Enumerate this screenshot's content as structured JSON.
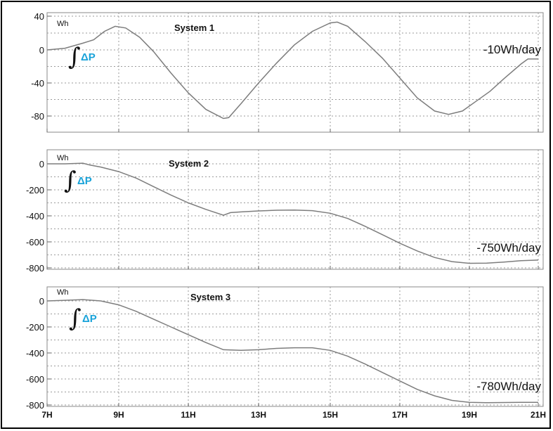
{
  "chart_data": [
    {
      "type": "line",
      "title": "System 1",
      "unit": "Wh",
      "integral_label": "ΔP",
      "annotation": "-10Wh/day",
      "ylim": [
        -90,
        42
      ],
      "yticks": [
        40,
        0,
        -40,
        -80
      ],
      "ytick_labels": [
        "40",
        "0",
        "-40",
        "-80"
      ],
      "xlim": [
        7,
        21
      ],
      "xticks": [
        7,
        9,
        11,
        13,
        15,
        17,
        19,
        21
      ],
      "grid": true,
      "series": [
        {
          "x": [
            7,
            7.5,
            8,
            8.3,
            8.6,
            8.9,
            9.2,
            9.6,
            10,
            10.5,
            11,
            11.5,
            12,
            12.15,
            12.5,
            13,
            13.5,
            14,
            14.5,
            15,
            15.2,
            15.5,
            16,
            16.5,
            17,
            17.5,
            18,
            18.4,
            18.8,
            19.2,
            19.6,
            20,
            20.5,
            20.7,
            21
          ],
          "y": [
            0,
            2,
            8,
            12,
            22,
            28,
            26,
            15,
            -2,
            -28,
            -52,
            -72,
            -83,
            -82,
            -65,
            -40,
            -16,
            6,
            22,
            32,
            33,
            28,
            10,
            -10,
            -34,
            -58,
            -74,
            -78,
            -74,
            -62,
            -50,
            -35,
            -17,
            -11,
            -11
          ]
        }
      ]
    },
    {
      "type": "line",
      "title": "System 2",
      "unit": "Wh",
      "integral_label": "ΔP",
      "annotation": "-750Wh/day",
      "ylim": [
        -800,
        60
      ],
      "yticks": [
        0,
        -200,
        -400,
        -600,
        -800
      ],
      "ytick_labels": [
        "0",
        "-200",
        "-400",
        "-600",
        "-800"
      ],
      "xlim": [
        7,
        21
      ],
      "xticks": [
        7,
        9,
        11,
        13,
        15,
        17,
        19,
        21
      ],
      "grid": true,
      "series": [
        {
          "x": [
            7,
            7.5,
            8,
            8.2,
            8.5,
            9,
            9.5,
            10,
            10.5,
            11,
            11.5,
            12,
            12.2,
            12.5,
            13,
            13.5,
            14,
            14.5,
            15,
            15.5,
            16,
            16.5,
            17,
            17.5,
            18,
            18.5,
            19,
            19.5,
            20,
            20.5,
            21
          ],
          "y": [
            0,
            0,
            5,
            -10,
            -25,
            -60,
            -110,
            -175,
            -240,
            -300,
            -350,
            -395,
            -375,
            -370,
            -362,
            -357,
            -355,
            -360,
            -380,
            -420,
            -480,
            -545,
            -610,
            -670,
            -720,
            -752,
            -765,
            -763,
            -755,
            -745,
            -740
          ]
        }
      ]
    },
    {
      "type": "line",
      "title": "System 3",
      "unit": "Wh",
      "integral_label": "ΔP",
      "annotation": "-780Wh/day",
      "ylim": [
        -800,
        60
      ],
      "yticks": [
        0,
        -200,
        -400,
        -600,
        -800
      ],
      "ytick_labels": [
        "0",
        "-200",
        "-400",
        "-600",
        "-800"
      ],
      "xlim": [
        7,
        21
      ],
      "xticks": [
        7,
        9,
        11,
        13,
        15,
        17,
        19,
        21
      ],
      "xtick_labels": [
        "7H",
        "9H",
        "11H",
        "13H",
        "15H",
        "17H",
        "19H",
        "21H"
      ],
      "grid": true,
      "series": [
        {
          "x": [
            7,
            7.5,
            8,
            8.5,
            9,
            9.5,
            10,
            10.5,
            11,
            11.5,
            12,
            12.5,
            13,
            13.5,
            14,
            14.5,
            15,
            15.5,
            16,
            16.5,
            17,
            17.5,
            18,
            18.5,
            19,
            19.5,
            20,
            20.5,
            21
          ],
          "y": [
            0,
            5,
            10,
            0,
            -30,
            -80,
            -140,
            -200,
            -260,
            -320,
            -375,
            -380,
            -375,
            -365,
            -360,
            -360,
            -380,
            -425,
            -485,
            -550,
            -615,
            -680,
            -730,
            -765,
            -780,
            -782,
            -781,
            -780,
            -780
          ]
        }
      ]
    }
  ]
}
